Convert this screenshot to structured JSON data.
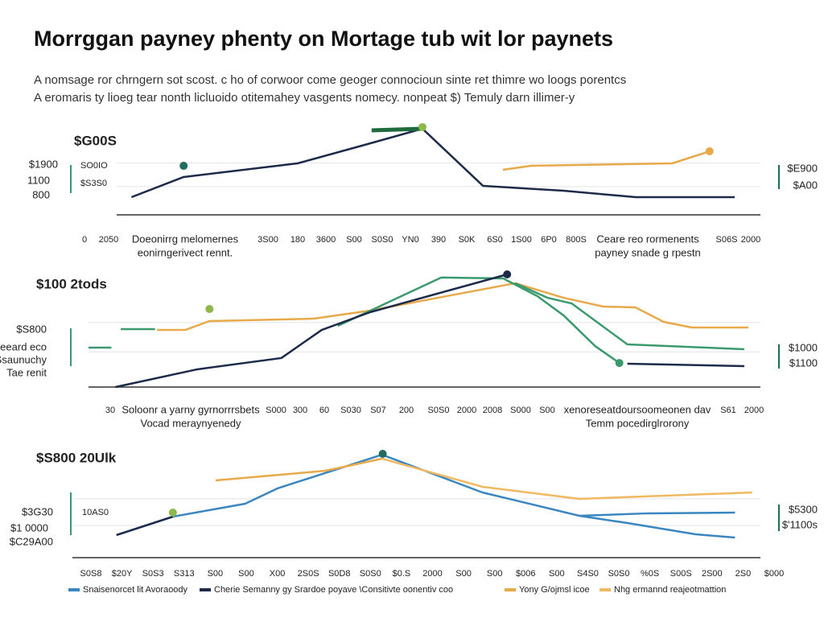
{
  "title": "Morrggan payney phenty on Mortage tub wit lor paynets",
  "subtitle": [
    "A nomsage ror chrngern sot scost. c ho of corwoor come geoger connocioun sinte ret thimre wo loogs porentcs",
    "A eromaris ty lioeg tear nonth licluoido otitemahey vasgents nomecy. nonpeat $) Temuly darn illimer-y"
  ],
  "chart_data": [
    {
      "type": "line",
      "heading": "$G00S",
      "left_labels": [
        "$1900",
        "1100",
        "800"
      ],
      "inner_labels": [
        "SO0IO",
        "$S3S0"
      ],
      "right_labels": [
        "$E900",
        "$A00"
      ],
      "xtick_labels": [
        "0",
        "2050",
        "3S00",
        "180",
        "3600",
        "S00",
        "S0S0",
        "YN0",
        "390",
        "S0K",
        "6S0",
        "1S00",
        "6P0",
        "800S",
        "S06S",
        "2000"
      ],
      "annotations": [
        [
          "Doeonirrg melomernes",
          "eonirngerivect rennt."
        ],
        [
          "Ceare reo rormenents",
          "payney snade g rpestn"
        ]
      ],
      "xlim": [
        0,
        100
      ],
      "ylim": [
        0,
        100
      ],
      "series": [
        {
          "color": "#1c2b4a",
          "x": [
            2.3,
            10.4,
            28.1,
            38.1,
            47.5,
            56.9,
            69.4,
            80.6,
            96
          ],
          "values": [
            18.8,
            40.2,
            54.7,
            73.5,
            91.5,
            30.8,
            25.6,
            18.8,
            18.8
          ]
        },
        {
          "color": "#e8a94a",
          "x": [
            60,
            64.4,
            86.3,
            92.1
          ],
          "values": [
            47.9,
            52.1,
            54.7,
            67.5
          ],
          "end_marker": true
        },
        {
          "color": "#1f6b3e",
          "x": [
            39.6,
            47.5
          ],
          "values": [
            89.7,
            91.5
          ],
          "width": 5
        },
        {
          "color": "#8db84a",
          "x": [
            47.5
          ],
          "values": [
            93.2
          ],
          "end_marker": true
        },
        {
          "color": "#1f6b5e",
          "x": [
            10.4
          ],
          "values": [
            52.1
          ],
          "end_marker": true
        }
      ]
    },
    {
      "type": "line",
      "heading": "$100 2tods",
      "left_labels": [
        "$S800",
        "Meeard eco",
        "Ssaunuchy",
        "Tae renit"
      ],
      "right_labels": [
        "$1000",
        "$1100"
      ],
      "xtick_labels": [
        "30",
        "S000",
        "300",
        "60",
        "S030",
        "S07",
        "200",
        "S0S0",
        "2000",
        "2008",
        "S000",
        "S00",
        "S61",
        "2000"
      ],
      "annotations": [
        [
          "Soloonr a yarny gyrnorrrsbets",
          "Vocad meraynyenedy"
        ],
        [
          "xenoreseatdoursoomeonen dav",
          "Temm pocedirglrorony"
        ]
      ],
      "xlim": [
        0,
        100
      ],
      "ylim": [
        0,
        100
      ],
      "series": [
        {
          "color": "#e8a94a",
          "x": [
            10.2,
            14.4,
            18.0,
            33.5,
            41.9,
            63.5,
            70.7,
            76.6,
            81.4,
            85.6,
            89.8,
            98.2
          ],
          "values": [
            48.6,
            48.6,
            56.2,
            58.2,
            65.1,
            88.4,
            76.0,
            68.5,
            67.8,
            55.5,
            50.7,
            50.7
          ]
        },
        {
          "color": "#3a9a6e",
          "x": [
            0,
            3.4,
            4.1,
            4.8,
            9.9
          ],
          "values": [
            33.6,
            33.6,
            null,
            49.3,
            49.3
          ]
        },
        {
          "color": "#3a9a6e",
          "x": [
            37.1,
            52.5,
            61.7,
            66.8,
            70.7,
            75.4,
            79.0
          ],
          "values": [
            52.1,
            93.2,
            92.5,
            77.4,
            61.0,
            34.9,
            20.5
          ],
          "end_marker": true
        },
        {
          "color": "#3a9a6e",
          "x": [
            63.5,
            68.3,
            71.9,
            80.2,
            97.6
          ],
          "values": [
            88.4,
            76.0,
            71.2,
            36.3,
            32.2
          ]
        },
        {
          "color": "#1c2b4a",
          "x": [
            4.0,
            16.2,
            28.7,
            34.7,
            41.9,
            62.3
          ],
          "values": [
            0,
            15.1,
            24.7,
            48.6,
            63.7,
            95.9
          ],
          "end_marker": true
        },
        {
          "color": "#1c2b4a",
          "x": [
            80.2,
            97.6
          ],
          "values": [
            19.9,
            17.8
          ]
        },
        {
          "color": "#8db84a",
          "x": [
            18.0
          ],
          "values": [
            66.4
          ],
          "end_marker": true
        }
      ]
    },
    {
      "type": "line",
      "heading": "$S800 20Ulk",
      "left_labels": [
        "$3G30",
        "$1 0000",
        "$C29A00"
      ],
      "inner_labels": [
        "10AS0"
      ],
      "right_labels": [
        "$5300",
        "$'1100s"
      ],
      "xtick_labels": [
        "S0S8",
        "$20Y",
        "S0S3",
        "S313",
        "S00",
        "S00",
        "X00",
        "2S0S",
        "S0D8",
        "S0S0",
        "$0.S",
        "2000",
        "S00",
        "S00",
        "$006",
        "S00",
        "S4S0",
        "S0S0",
        "%0S",
        "S00S",
        "2S00",
        "2S0",
        "$000"
      ],
      "xlim": [
        0,
        100
      ],
      "ylim": [
        0,
        100
      ],
      "series": [
        {
          "name": "Snaisenorcet lit Avoraoody",
          "color": "#3a86c0",
          "x": [
            6.4,
            14.6,
            25.1,
            29.8,
            45.0,
            59.6,
            73.7,
            80.7,
            90.6,
            96.3
          ],
          "values": [
            21.1,
            38.3,
            50.4,
            64.7,
            96.2,
            60.9,
            39.1,
            32.3,
            21.8,
            18.8
          ]
        },
        {
          "color": "#3a86c0",
          "x": [
            73.7,
            83.6,
            96.3
          ],
          "values": [
            39.1,
            41.4,
            42.1
          ]
        },
        {
          "name": "Yony G/ojmsl icoe",
          "color": "#e8a94a",
          "x": [
            20.8,
            36.8,
            45.0
          ],
          "values": [
            72.2,
            81.2,
            92.5
          ]
        },
        {
          "name": "Nhg ermannd reajeotmattion",
          "color": "#f0b860",
          "x": [
            45.0,
            59.6,
            73.7,
            98.8
          ],
          "values": [
            92.5,
            66.2,
            54.9,
            60.9
          ]
        },
        {
          "name": "Cherie Semanny gy Srardoe poyave \\Consitivte oonentiv coo",
          "color": "#1c2b4a",
          "x": [
            6.4,
            14.6
          ],
          "values": [
            21.1,
            38.3
          ]
        },
        {
          "color": "#1f6b5e",
          "x": [
            45.1
          ],
          "values": [
            97.0
          ],
          "end_marker": true
        },
        {
          "color": "#8db84a",
          "x": [
            14.6
          ],
          "values": [
            42.1
          ],
          "end_marker": true
        }
      ]
    }
  ]
}
